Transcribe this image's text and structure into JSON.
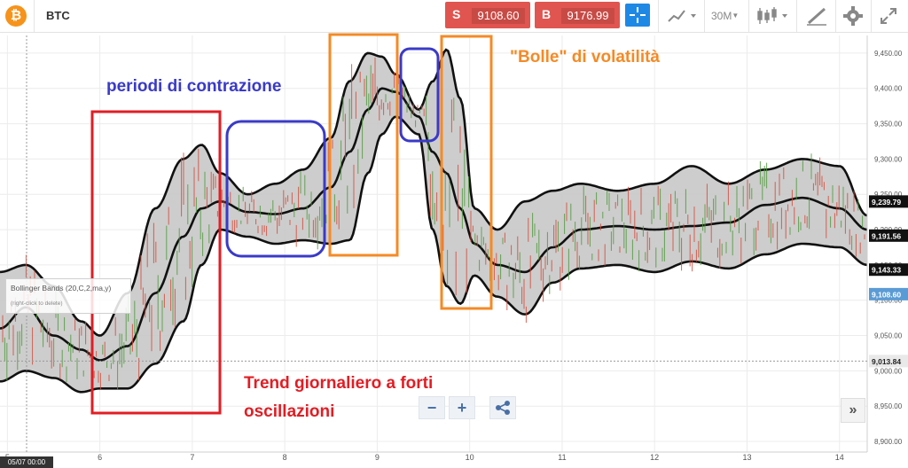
{
  "header": {
    "logo_glyph": "₿",
    "symbol": "BTC",
    "sell": {
      "letter": "S",
      "price": "9108.60"
    },
    "buy": {
      "letter": "B",
      "price": "9176.99"
    },
    "timeframe": "30M",
    "icons": [
      "crosshair-icon",
      "line-chart-icon",
      "candlestick-icon",
      "draw-tool-icon",
      "gear-icon",
      "fullscreen-icon"
    ]
  },
  "indicator": {
    "name": "Bollinger Bands (20,C,2,ma,y)",
    "hint": "(right-click to delete)"
  },
  "controls": {
    "zoom_out": "−",
    "zoom_in": "+",
    "share_glyph": "⋖",
    "expand_glyph": "»"
  },
  "footer": {
    "date_label": "05/07 00:00"
  },
  "annotations": {
    "contraction": "periodi di contrazione",
    "bubbles": "\"Bolle\" di volatilità",
    "trend_line1": "Trend giornaliero a forti",
    "trend_line2": "oscillazioni"
  },
  "colors": {
    "red_box": "#e21d24",
    "blue_box": "#3a3ac8",
    "orange_box": "#f58a25",
    "band_fill": "#c8c8c8",
    "sell": "#e0554f",
    "accent": "#1e88e5"
  },
  "chart_data": {
    "type": "candlestick",
    "indicator": "Bollinger Bands (20,C,2,ma,y)",
    "y_axis": {
      "range": [
        8885,
        9475
      ],
      "ticks": [
        8900,
        8950,
        9000,
        9050,
        9100,
        9150,
        9200,
        9250,
        9300,
        9350,
        9400,
        9450
      ],
      "tick_labels": [
        "8,900.00",
        "8,950.00",
        "9,000.00",
        "9,050.00",
        "9,100.00",
        "9,150.00",
        "9,200.00",
        "9,250.00",
        "9,300.00",
        "9,350.00",
        "9,400.00",
        "9,450.00"
      ],
      "position": "right"
    },
    "x_axis": {
      "unit": "day",
      "range": [
        4.92,
        14.3
      ],
      "ticks": [
        5,
        6,
        7,
        8,
        9,
        10,
        11,
        12,
        13,
        14
      ],
      "tick_labels": [
        "5",
        "6",
        "7",
        "8",
        "9",
        "10",
        "11",
        "12",
        "13",
        "14"
      ]
    },
    "price_tags": [
      {
        "value": 9239.79,
        "label": "9,239.79",
        "style": "dark"
      },
      {
        "value": 9191.56,
        "label": "9,191.56",
        "style": "dark"
      },
      {
        "value": 9143.33,
        "label": "9,143.33",
        "style": "dark"
      },
      {
        "value": 9108.6,
        "label": "9,108.60",
        "style": "blue"
      },
      {
        "value": 9013.84,
        "label": "9,013.84",
        "style": "light"
      }
    ],
    "bands": {
      "x": [
        4.92,
        5.2,
        5.5,
        5.8,
        6.0,
        6.3,
        6.6,
        6.9,
        7.1,
        7.3,
        7.6,
        7.9,
        8.2,
        8.5,
        8.7,
        8.9,
        9.05,
        9.2,
        9.45,
        9.6,
        9.75,
        9.9,
        10.05,
        10.3,
        10.6,
        10.9,
        11.2,
        11.6,
        12.0,
        12.4,
        12.8,
        13.2,
        13.6,
        14.0,
        14.3
      ],
      "upper": [
        9140,
        9150,
        9120,
        9070,
        9050,
        9110,
        9230,
        9300,
        9320,
        9280,
        9250,
        9265,
        9285,
        9330,
        9410,
        9450,
        9445,
        9420,
        9370,
        9410,
        9455,
        9385,
        9230,
        9200,
        9240,
        9255,
        9265,
        9255,
        9265,
        9290,
        9265,
        9285,
        9300,
        9290,
        9220
      ],
      "middle": [
        9060,
        9090,
        9050,
        9030,
        9015,
        9035,
        9110,
        9190,
        9230,
        9240,
        9225,
        9222,
        9230,
        9260,
        9310,
        9370,
        9400,
        9395,
        9360,
        9310,
        9280,
        9230,
        9180,
        9150,
        9140,
        9175,
        9200,
        9205,
        9200,
        9205,
        9210,
        9235,
        9245,
        9230,
        9200
      ],
      "lower": [
        8985,
        9000,
        8990,
        8970,
        8975,
        8975,
        9010,
        9070,
        9150,
        9200,
        9190,
        9180,
        9185,
        9180,
        9185,
        9280,
        9335,
        9360,
        9335,
        9200,
        9120,
        9095,
        9135,
        9105,
        9080,
        9125,
        9145,
        9150,
        9140,
        9155,
        9145,
        9165,
        9180,
        9175,
        9150
      ]
    }
  }
}
